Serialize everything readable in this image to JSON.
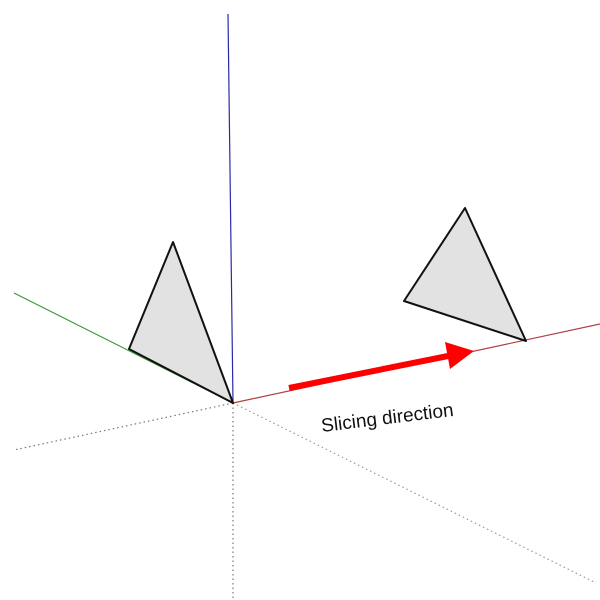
{
  "diagram": {
    "annotation_label": "Slicing direction",
    "colors": {
      "background": "#ffffff",
      "axis_blue": "#2a2aa8",
      "axis_green": "#3a9a3a",
      "axis_red": "#b04040",
      "hidden_axis_dots": "#777777",
      "hidden_green_dots": "#9aa07a",
      "triangle_fill": "#e2e2e2",
      "triangle_stroke": "#111111",
      "arrow": "#ff0000",
      "label_text": "#111111"
    }
  }
}
